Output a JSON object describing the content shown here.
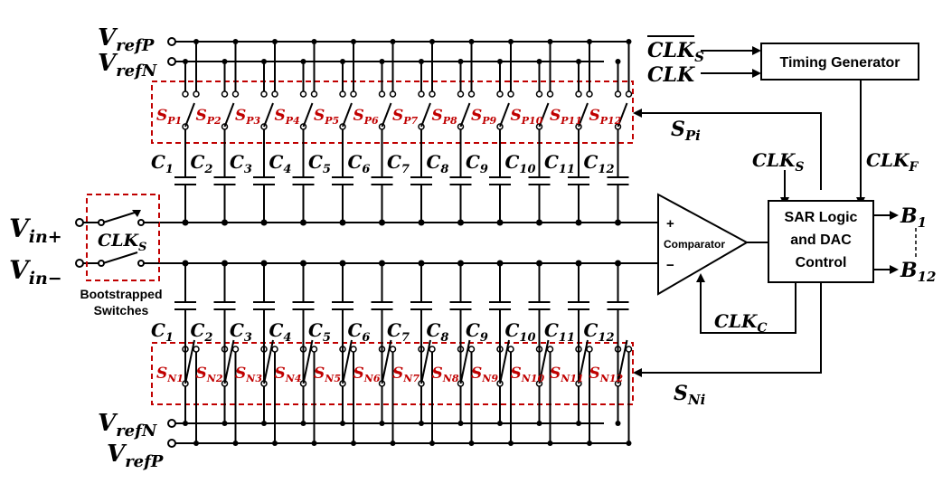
{
  "refs": {
    "vrefp_top": "V",
    "vrefp_top_sub": "refP",
    "vrefn_top": "V",
    "vrefn_top_sub": "refN",
    "vrefn_bot": "V",
    "vrefn_bot_sub": "refN",
    "vrefp_bot": "V",
    "vrefp_bot_sub": "refP"
  },
  "inputs": {
    "vin_plus": "V",
    "vin_plus_sub": "in+",
    "vin_minus": "V",
    "vin_minus_sub": "in−",
    "clks": "CLK",
    "clks_sub": "S",
    "bootstrap_line1": "Bootstrapped",
    "bootstrap_line2": "Switches"
  },
  "top_switches": [
    "P1",
    "P2",
    "P3",
    "P4",
    "P5",
    "P6",
    "P7",
    "P8",
    "P9",
    "P10",
    "P11",
    "P12"
  ],
  "bottom_switches": [
    "N1",
    "N2",
    "N3",
    "N4",
    "N5",
    "N6",
    "N7",
    "N8",
    "N9",
    "N10",
    "N11",
    "N12"
  ],
  "capacitors": [
    "1",
    "2",
    "3",
    "4",
    "5",
    "6",
    "7",
    "8",
    "9",
    "10",
    "11",
    "12"
  ],
  "switch_prefix": "S",
  "cap_prefix": "C",
  "comparator": {
    "label": "Comparator",
    "plus": "+",
    "minus": "−"
  },
  "sar": {
    "line1": "SAR Logic",
    "line2": "and DAC",
    "line3": "Control"
  },
  "timing": {
    "label": "Timing Generator"
  },
  "clocks": {
    "clks_bar": "CLK",
    "clks_bar_sub": "S",
    "clk": "CLK",
    "clks_right": "CLK",
    "clks_right_sub": "S",
    "clkf": "CLK",
    "clkf_sub": "F",
    "clkc": "CLK",
    "clkc_sub": "C"
  },
  "signals": {
    "spi": "S",
    "spi_sub": "Pi",
    "sni": "S",
    "sni_sub": "Ni"
  },
  "outputs": {
    "b1": "B",
    "b1_sub": "1",
    "b12": "B",
    "b12_sub": "12"
  },
  "colors": {
    "switch_red": "#c00000",
    "line": "#000000"
  }
}
